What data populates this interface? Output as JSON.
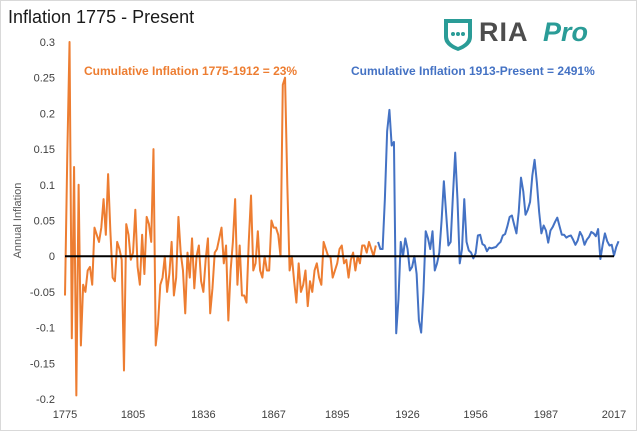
{
  "chart_data": {
    "type": "line",
    "title": "Inflation 1775 - Present",
    "xlabel": "",
    "ylabel": "Annual Inflation",
    "xlim": [
      1775,
      2017
    ],
    "ylim": [
      -0.2,
      0.3
    ],
    "yticks": [
      "0.3",
      "0.25",
      "0.2",
      "0.15",
      "0.1",
      "0.05",
      "0",
      "-0.05",
      "-0.1",
      "-0.15",
      "-0.2"
    ],
    "xticks": [
      "1775",
      "1805",
      "1836",
      "1867",
      "1895",
      "1926",
      "1956",
      "1987",
      "2017"
    ],
    "annotations": [
      {
        "text": "Cumulative Inflation 1775-1912 = 23%",
        "color": "#ed7d31"
      },
      {
        "text": "Cumulative Inflation 1913-Present = 2491%",
        "color": "#4472c4"
      }
    ],
    "series": [
      {
        "name": "Inflation 1775-1912",
        "color": "#ed7d31",
        "x_start": 1775,
        "values": [
          -0.055,
          0.14,
          0.3,
          -0.115,
          0.125,
          -0.195,
          0.1,
          -0.125,
          -0.04,
          -0.05,
          -0.02,
          -0.015,
          -0.04,
          0.04,
          0.03,
          0.02,
          0.04,
          0.08,
          0.03,
          0.115,
          0.035,
          -0.03,
          -0.035,
          0.02,
          0.01,
          -0.005,
          -0.16,
          0.045,
          0.03,
          -0.005,
          0.005,
          0.065,
          -0.015,
          -0.04,
          0.03,
          -0.025,
          0.055,
          0.045,
          0.02,
          0.15,
          -0.125,
          -0.095,
          -0.04,
          -0.03,
          0.0,
          -0.05,
          -0.025,
          0.02,
          -0.055,
          -0.03,
          0.055,
          0.005,
          -0.02,
          -0.08,
          0.005,
          -0.03,
          0.025,
          -0.045,
          0.0,
          0.015,
          -0.035,
          -0.05,
          -0.005,
          0.025,
          -0.08,
          -0.045,
          0.005,
          0.01,
          0.025,
          0.04,
          -0.01,
          0.015,
          -0.09,
          -0.02,
          0.02,
          0.08,
          -0.04,
          0.015,
          -0.055,
          -0.055,
          -0.065,
          0.02,
          0.085,
          -0.02,
          -0.01,
          0.035,
          -0.02,
          -0.03,
          0.0,
          -0.02,
          -0.02,
          0.05,
          0.04,
          0.04,
          0.03,
          0.0,
          0.24,
          0.25,
          0.1,
          -0.02,
          0.0,
          -0.035,
          -0.065,
          -0.01,
          -0.05,
          -0.04,
          -0.02,
          -0.07,
          -0.035,
          -0.05,
          -0.02,
          -0.01,
          -0.03,
          -0.04,
          0.02,
          0.01,
          0.0,
          0.0,
          -0.03,
          -0.02,
          -0.01,
          0.01,
          0.015,
          -0.01,
          -0.005,
          -0.03,
          -0.005,
          0.005,
          -0.02,
          0.0,
          -0.01,
          0.015,
          0.015,
          0.005,
          0.02,
          0.01,
          0.0,
          0.015
        ]
      },
      {
        "name": "Inflation 1913-Present",
        "color": "#4472c4",
        "x_start": 1913,
        "values": [
          0.02,
          0.01,
          0.01,
          0.08,
          0.175,
          0.205,
          0.155,
          0.16,
          -0.108,
          -0.06,
          0.02,
          0.0,
          0.025,
          0.01,
          -0.02,
          -0.015,
          0.0,
          -0.025,
          -0.09,
          -0.107,
          -0.05,
          0.035,
          0.025,
          0.01,
          0.035,
          -0.02,
          -0.01,
          0.005,
          0.05,
          0.105,
          0.06,
          0.015,
          0.02,
          0.085,
          0.145,
          0.08,
          -0.01,
          0.01,
          0.08,
          0.02,
          0.008,
          0.005,
          -0.003,
          0.004,
          0.029,
          0.03,
          0.017,
          0.015,
          0.007,
          0.012,
          0.011,
          0.012,
          0.013,
          0.017,
          0.02,
          0.029,
          0.031,
          0.042,
          0.055,
          0.057,
          0.044,
          0.032,
          0.062,
          0.11,
          0.091,
          0.058,
          0.065,
          0.076,
          0.113,
          0.135,
          0.103,
          0.062,
          0.032,
          0.043,
          0.036,
          0.019,
          0.036,
          0.041,
          0.048,
          0.054,
          0.042,
          0.03,
          0.03,
          0.026,
          0.028,
          0.029,
          0.023,
          0.016,
          0.022,
          0.034,
          0.028,
          0.016,
          0.023,
          0.027,
          0.034,
          0.032,
          0.028,
          0.038,
          -0.004,
          0.016,
          0.032,
          0.021,
          0.015,
          0.016,
          0.001,
          0.013,
          0.021
        ]
      }
    ]
  }
}
